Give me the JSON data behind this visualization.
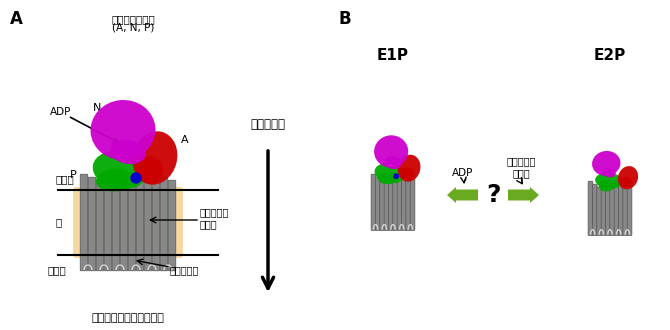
{
  "title_A": "A",
  "title_B": "B",
  "label_cytoplasmic_domain": "細胞質ドメイン",
  "label_ANP": "(A, N, P)",
  "label_N": "N",
  "label_ADP": "ADP",
  "label_P": "P",
  "label_A": "A",
  "label_cytoplasm": "細胞質",
  "label_membrane": "膜",
  "label_ER": "小胞体",
  "label_calcium_ion": "カルシウム\nイオン",
  "label_transmembrane": "膜貫通部位",
  "label_transport_direction": "輸送の方向",
  "label_pump": "カルシウムイオンポンプ",
  "label_E1P": "E1P",
  "label_E2P": "E2P",
  "label_ADP_arrow": "ADP",
  "label_calcium_ion2": "カルシウム\nイオン",
  "label_question": "?",
  "bg_color": "#ffffff",
  "membrane_color": "#f5d090",
  "magenta_color": "#cc00cc",
  "green_color": "#00aa00",
  "red_color": "#cc0000",
  "gray_color": "#888888",
  "darkgray_color": "#555555",
  "arrow_green_color": "#6aaa20",
  "blue_color": "#0000cc",
  "text_color": "#000000"
}
